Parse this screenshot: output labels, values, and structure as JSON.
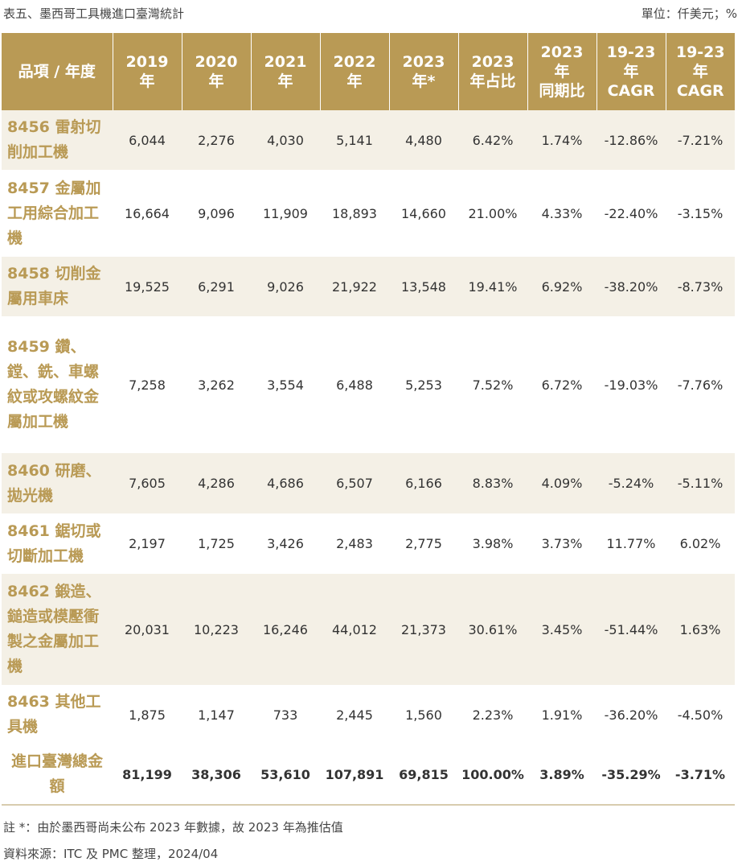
{
  "caption": "表五、墨西哥工具機進口臺灣統計",
  "unit": "單位：仟美元；%",
  "headers": [
    "品項 / 年度",
    "2019\n年",
    "2020\n年",
    "2021\n年",
    "2022\n年",
    "2023\n年*",
    "2023\n年占比",
    "2023\n年\n同期比",
    "19-23\n年\nCAGR",
    "19-23\n年\nCAGR"
  ],
  "rows": [
    {
      "item": "8456 雷射切削加工機",
      "values": [
        "6,044",
        "2,276",
        "4,030",
        "5,141",
        "4,480",
        "6.42%",
        "1.74%",
        "-12.86%",
        "-7.21%"
      ]
    },
    {
      "item": "8457 金屬加工用綜合加工機",
      "values": [
        "16,664",
        "9,096",
        "11,909",
        "18,893",
        "14,660",
        "21.00%",
        "4.33%",
        "-22.40%",
        "-3.15%"
      ]
    },
    {
      "item": "8458 切削金屬用車床",
      "values": [
        "19,525",
        "6,291",
        "9,026",
        "21,922",
        "13,548",
        "19.41%",
        "6.92%",
        "-38.20%",
        "-8.73%"
      ]
    },
    {
      "item": "8459 鑽、鏜、銑、車螺紋或攻螺紋金屬加工機",
      "values": [
        "7,258",
        "3,262",
        "3,554",
        "6,488",
        "5,253",
        "7.52%",
        "6.72%",
        "-19.03%",
        "-7.76%"
      ]
    },
    {
      "item": "8460 研磨、拋光機",
      "values": [
        "7,605",
        "4,286",
        "4,686",
        "6,507",
        "6,166",
        "8.83%",
        "4.09%",
        "-5.24%",
        "-5.11%"
      ]
    },
    {
      "item": "8461 鋸切或切斷加工機",
      "values": [
        "2,197",
        "1,725",
        "3,426",
        "2,483",
        "2,775",
        "3.98%",
        "3.73%",
        "11.77%",
        "6.02%"
      ]
    },
    {
      "item": "8462 鍛造、鎚造或模壓衝製之金屬加工機",
      "values": [
        "20,031",
        "10,223",
        "16,246",
        "44,012",
        "21,373",
        "30.61%",
        "3.45%",
        "-51.44%",
        "1.63%"
      ]
    },
    {
      "item": "8463 其他工具機",
      "values": [
        "1,875",
        "1,147",
        "733",
        "2,445",
        "1,560",
        "2.23%",
        "1.91%",
        "-36.20%",
        "-4.50%"
      ]
    }
  ],
  "total": {
    "item": "進口臺灣總金額",
    "values": [
      "81,199",
      "38,306",
      "53,610",
      "107,891",
      "69,815",
      "100.00%",
      "3.89%",
      "-35.29%",
      "-3.71%"
    ]
  },
  "notes": {
    "footnote": "註 *：由於墨西哥尚未公布 2023 年數據，故 2023 年為推估值",
    "source": "資料來源：ITC 及 PMC 整理，2024/04"
  },
  "colors": {
    "header_bg": "#b99a55",
    "stripe_bg": "#f4f0e6",
    "item_text": "#b99a55",
    "rule": "#d8ccae"
  }
}
